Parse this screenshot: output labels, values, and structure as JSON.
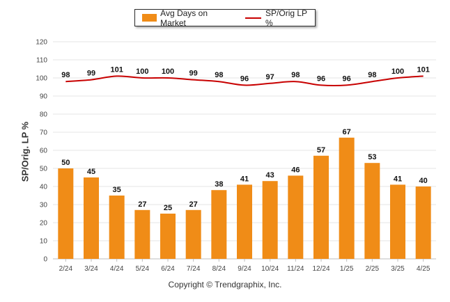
{
  "legend": {
    "bar_label": "Avg Days on Market",
    "line_label": "SP/Orig LP %"
  },
  "footer": "Copyright © Trendgraphix, Inc.",
  "colors": {
    "bar": "#f08c17",
    "line": "#c80000",
    "grid": "#e6e6e6"
  },
  "chart_data": {
    "type": "bar",
    "ylabel": "SP/Orig. LP %",
    "ylim": [
      0,
      120
    ],
    "yticks": [
      0,
      10,
      20,
      30,
      40,
      50,
      60,
      70,
      80,
      90,
      100,
      110,
      120
    ],
    "grid": true,
    "legend_position": "top-center",
    "categories": [
      "2/24",
      "3/24",
      "4/24",
      "5/24",
      "6/24",
      "7/24",
      "8/24",
      "9/24",
      "10/24",
      "11/24",
      "12/24",
      "1/25",
      "2/25",
      "3/25",
      "4/25"
    ],
    "series": [
      {
        "name": "Avg Days on Market",
        "type": "bar",
        "values": [
          50,
          45,
          35,
          27,
          25,
          27,
          38,
          41,
          43,
          46,
          57,
          67,
          53,
          41,
          40
        ]
      },
      {
        "name": "SP/Orig LP %",
        "type": "line",
        "values": [
          98,
          99,
          101,
          100,
          100,
          99,
          98,
          96,
          97,
          98,
          96,
          96,
          98,
          100,
          101
        ]
      }
    ]
  }
}
